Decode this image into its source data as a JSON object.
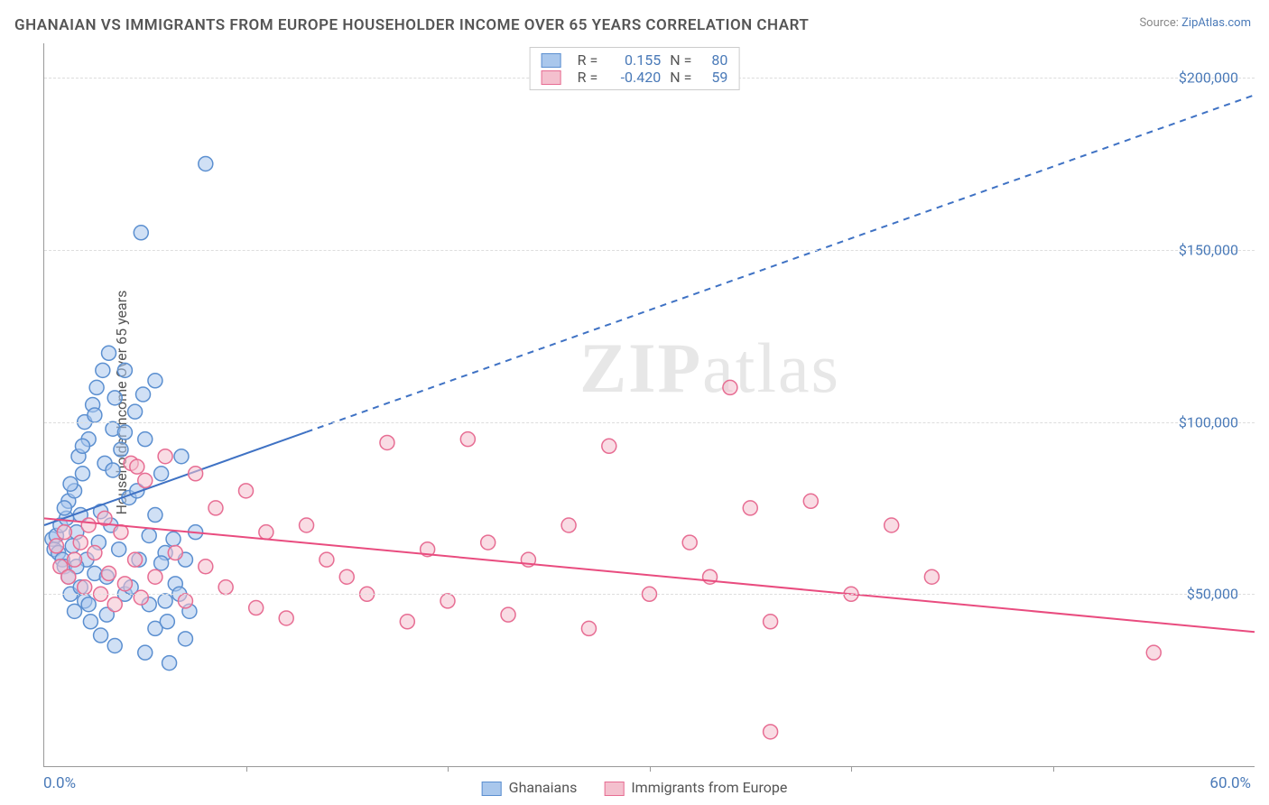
{
  "title": "GHANAIAN VS IMMIGRANTS FROM EUROPE HOUSEHOLDER INCOME OVER 65 YEARS CORRELATION CHART",
  "source_label": "Source:",
  "source_name": "ZipAtlas.com",
  "ylabel": "Householder Income Over 65 years",
  "watermark_a": "ZIP",
  "watermark_b": "atlas",
  "chart": {
    "type": "scatter",
    "background_color": "#ffffff",
    "grid_color": "#dddddd",
    "axis_color": "#999999",
    "tick_label_color": "#4a7ab8",
    "xlim": [
      0,
      60
    ],
    "ylim": [
      0,
      210000
    ],
    "xtick_step": 10,
    "ytick_step": 50000,
    "x_axis_labels": {
      "min": "0.0%",
      "max": "60.0%"
    },
    "y_tick_labels": [
      "$50,000",
      "$100,000",
      "$150,000",
      "$200,000"
    ],
    "series": [
      {
        "name": "Ghanaians",
        "label": "Ghanaians",
        "color_fill": "#a9c7ec",
        "color_stroke": "#5b8fd0",
        "marker": "circle",
        "marker_size": 8,
        "fill_opacity": 0.55,
        "R": "0.155",
        "N": "80",
        "trend": {
          "x1": 0,
          "y1": 70000,
          "x2": 60,
          "y2": 195000,
          "solid_until_x": 13,
          "color": "#3f72c4",
          "width": 2
        },
        "points": [
          [
            0.4,
            66000
          ],
          [
            0.5,
            63000
          ],
          [
            0.6,
            67000
          ],
          [
            0.7,
            62000
          ],
          [
            0.8,
            70000
          ],
          [
            0.9,
            60000
          ],
          [
            1.0,
            58000
          ],
          [
            1.1,
            72000
          ],
          [
            1.2,
            55000
          ],
          [
            1.2,
            77000
          ],
          [
            1.3,
            50000
          ],
          [
            1.4,
            64000
          ],
          [
            1.5,
            80000
          ],
          [
            1.5,
            45000
          ],
          [
            1.6,
            68000
          ],
          [
            1.7,
            90000
          ],
          [
            1.8,
            52000
          ],
          [
            1.8,
            73000
          ],
          [
            1.9,
            85000
          ],
          [
            2.0,
            48000
          ],
          [
            2.0,
            100000
          ],
          [
            2.1,
            60000
          ],
          [
            2.2,
            95000
          ],
          [
            2.3,
            42000
          ],
          [
            2.4,
            105000
          ],
          [
            2.5,
            56000
          ],
          [
            2.6,
            110000
          ],
          [
            2.7,
            65000
          ],
          [
            2.8,
            38000
          ],
          [
            2.9,
            115000
          ],
          [
            3.0,
            88000
          ],
          [
            3.1,
            44000
          ],
          [
            3.2,
            120000
          ],
          [
            3.3,
            70000
          ],
          [
            3.4,
            98000
          ],
          [
            3.5,
            35000
          ],
          [
            3.5,
            107000
          ],
          [
            3.8,
            92000
          ],
          [
            4.0,
            50000
          ],
          [
            4.0,
            115000
          ],
          [
            4.2,
            78000
          ],
          [
            4.5,
            103000
          ],
          [
            4.7,
            60000
          ],
          [
            4.8,
            155000
          ],
          [
            5.0,
            33000
          ],
          [
            5.0,
            95000
          ],
          [
            5.2,
            67000
          ],
          [
            5.5,
            40000
          ],
          [
            5.5,
            112000
          ],
          [
            5.8,
            85000
          ],
          [
            6.0,
            48000
          ],
          [
            6.0,
            62000
          ],
          [
            6.2,
            30000
          ],
          [
            6.5,
            53000
          ],
          [
            6.8,
            90000
          ],
          [
            7.0,
            37000
          ],
          [
            7.0,
            60000
          ],
          [
            7.2,
            45000
          ],
          [
            7.5,
            68000
          ],
          [
            8.0,
            175000
          ],
          [
            1.0,
            75000
          ],
          [
            1.3,
            82000
          ],
          [
            1.6,
            58000
          ],
          [
            1.9,
            93000
          ],
          [
            2.2,
            47000
          ],
          [
            2.5,
            102000
          ],
          [
            2.8,
            74000
          ],
          [
            3.1,
            55000
          ],
          [
            3.4,
            86000
          ],
          [
            3.7,
            63000
          ],
          [
            4.0,
            97000
          ],
          [
            4.3,
            52000
          ],
          [
            4.6,
            80000
          ],
          [
            4.9,
            108000
          ],
          [
            5.2,
            47000
          ],
          [
            5.5,
            73000
          ],
          [
            5.8,
            59000
          ],
          [
            6.1,
            42000
          ],
          [
            6.4,
            66000
          ],
          [
            6.7,
            50000
          ]
        ]
      },
      {
        "name": "Immigrants from Europe",
        "label": "Immigrants from Europe",
        "color_fill": "#f4c0ce",
        "color_stroke": "#e76d93",
        "marker": "circle",
        "marker_size": 8,
        "fill_opacity": 0.55,
        "R": "-0.420",
        "N": "59",
        "trend": {
          "x1": 0,
          "y1": 72000,
          "x2": 60,
          "y2": 39000,
          "solid_until_x": 60,
          "color": "#e94c7f",
          "width": 2
        },
        "points": [
          [
            0.6,
            64000
          ],
          [
            0.8,
            58000
          ],
          [
            1.0,
            68000
          ],
          [
            1.2,
            55000
          ],
          [
            1.5,
            60000
          ],
          [
            1.8,
            65000
          ],
          [
            2.0,
            52000
          ],
          [
            2.2,
            70000
          ],
          [
            2.5,
            62000
          ],
          [
            2.8,
            50000
          ],
          [
            3.0,
            72000
          ],
          [
            3.2,
            56000
          ],
          [
            3.5,
            47000
          ],
          [
            3.8,
            68000
          ],
          [
            4.0,
            53000
          ],
          [
            4.3,
            88000
          ],
          [
            4.5,
            60000
          ],
          [
            4.8,
            49000
          ],
          [
            5.0,
            83000
          ],
          [
            5.5,
            55000
          ],
          [
            6.0,
            90000
          ],
          [
            6.5,
            62000
          ],
          [
            7.0,
            48000
          ],
          [
            7.5,
            85000
          ],
          [
            8.0,
            58000
          ],
          [
            8.5,
            75000
          ],
          [
            9.0,
            52000
          ],
          [
            10.0,
            80000
          ],
          [
            10.5,
            46000
          ],
          [
            11.0,
            68000
          ],
          [
            12.0,
            43000
          ],
          [
            13.0,
            70000
          ],
          [
            14.0,
            60000
          ],
          [
            15.0,
            55000
          ],
          [
            16.0,
            50000
          ],
          [
            17.0,
            94000
          ],
          [
            18.0,
            42000
          ],
          [
            19.0,
            63000
          ],
          [
            20.0,
            48000
          ],
          [
            21.0,
            95000
          ],
          [
            22.0,
            65000
          ],
          [
            23.0,
            44000
          ],
          [
            24.0,
            60000
          ],
          [
            26.0,
            70000
          ],
          [
            27.0,
            40000
          ],
          [
            28.0,
            93000
          ],
          [
            30.0,
            50000
          ],
          [
            32.0,
            65000
          ],
          [
            33.0,
            55000
          ],
          [
            34.0,
            110000
          ],
          [
            35.0,
            75000
          ],
          [
            36.0,
            42000
          ],
          [
            38.0,
            77000
          ],
          [
            40.0,
            50000
          ],
          [
            42.0,
            70000
          ],
          [
            36.0,
            10000
          ],
          [
            44.0,
            55000
          ],
          [
            55.0,
            33000
          ],
          [
            4.6,
            87000
          ]
        ]
      }
    ],
    "stats_legend": {
      "R_label": "R =",
      "N_label": "N ="
    }
  }
}
